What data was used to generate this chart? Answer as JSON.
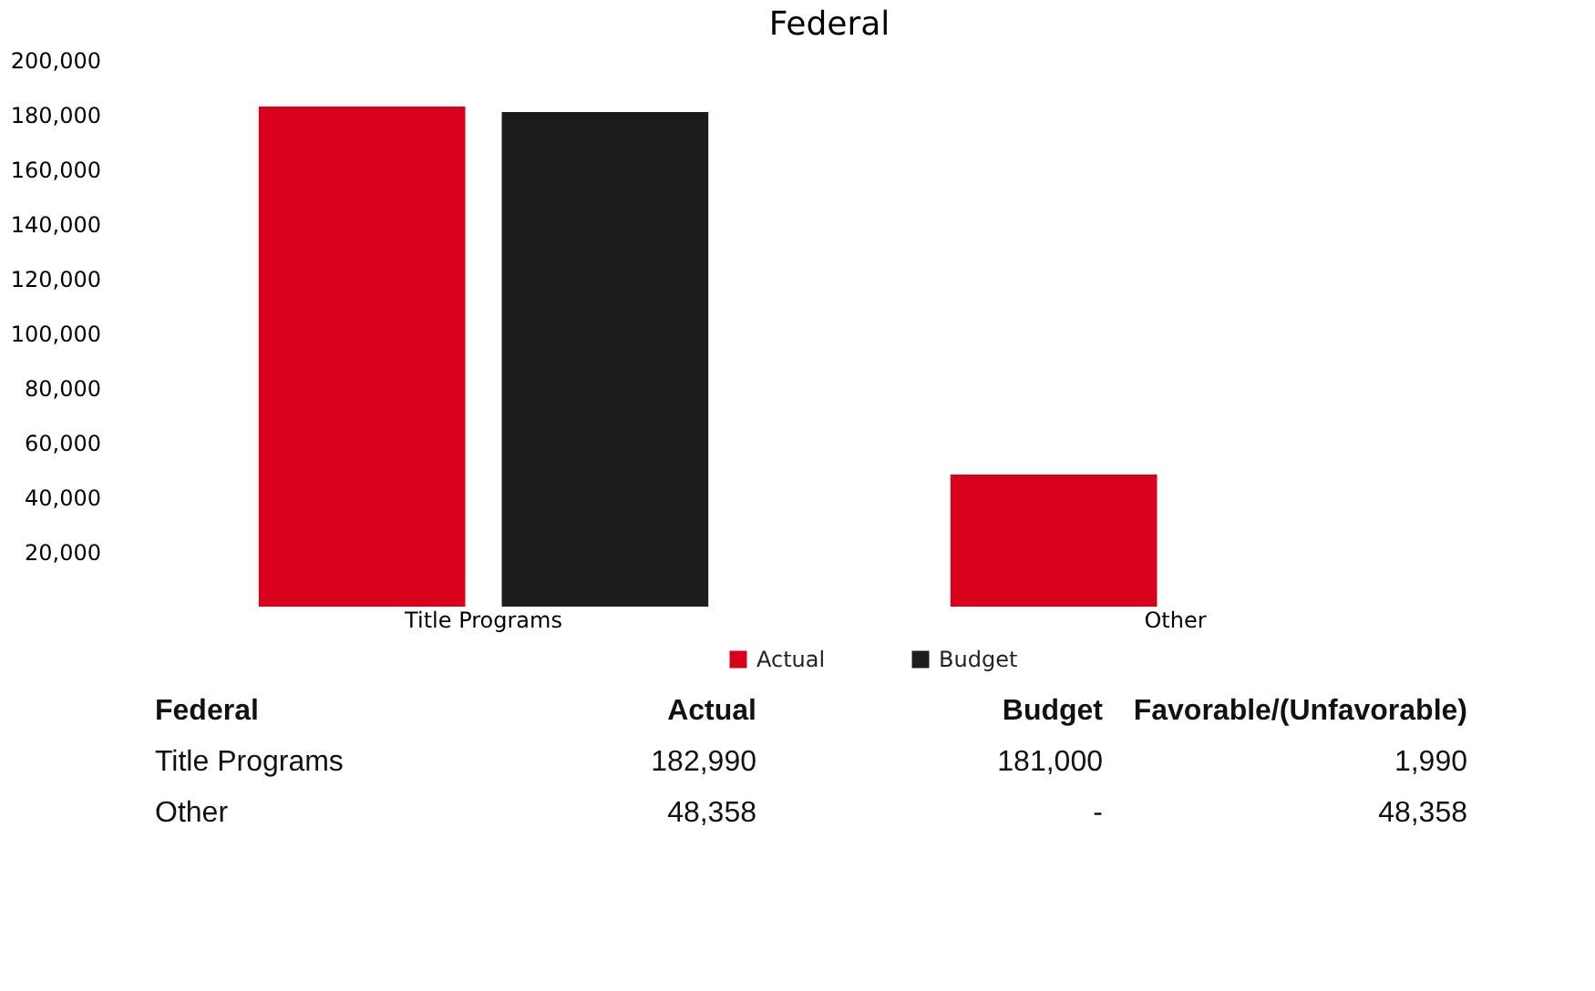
{
  "chart_data": {
    "type": "bar",
    "title": "Federal",
    "categories": [
      "Title Programs",
      "Other"
    ],
    "series": [
      {
        "name": "Actual",
        "color": "#d9001b",
        "values": [
          182990,
          48358
        ]
      },
      {
        "name": "Budget",
        "color": "#1c1c1c",
        "values": [
          181000,
          0
        ]
      }
    ],
    "ylim": [
      0,
      200000
    ],
    "yticks": [
      {
        "value": 20000,
        "label": "20,000"
      },
      {
        "value": 40000,
        "label": "40,000"
      },
      {
        "value": 60000,
        "label": "60,000"
      },
      {
        "value": 80000,
        "label": "80,000"
      },
      {
        "value": 100000,
        "label": "100,000"
      },
      {
        "value": 120000,
        "label": "120,000"
      },
      {
        "value": 140000,
        "label": "140,000"
      },
      {
        "value": 160000,
        "label": "160,000"
      },
      {
        "value": 180000,
        "label": "180,000"
      },
      {
        "value": 200000,
        "label": "200,000"
      }
    ],
    "grid": false,
    "legend": "bottom",
    "annotations": [
      "Federal",
      "Actual",
      "Budget",
      "Favorable/(Unfavorable)",
      "Title Programs",
      "182,990",
      "181,000",
      "1,990",
      "Other",
      "48,358",
      "-",
      "48,358"
    ]
  }
}
